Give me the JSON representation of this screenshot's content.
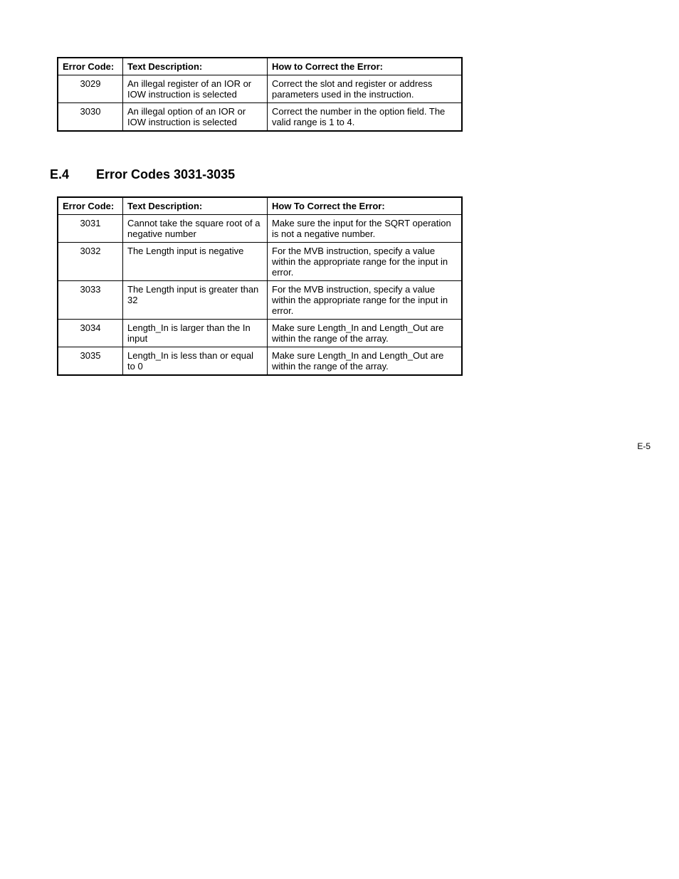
{
  "table1": {
    "headers": {
      "code": "Error Code:",
      "desc": "Text Description:",
      "fix": "How to Correct the Error:"
    },
    "rows": [
      {
        "code": "3029",
        "desc": "An illegal register of an IOR or IOW instruction is selected",
        "fix": "Correct the slot and register or address parameters used in the instruction."
      },
      {
        "code": "3030",
        "desc": "An illegal option of an IOR or IOW instruction is selected",
        "fix": "Correct the number in the option field. The valid range is 1 to 4."
      }
    ]
  },
  "section": {
    "num": "E.4",
    "title": "Error Codes 3031-3035"
  },
  "table2": {
    "headers": {
      "code": "Error Code:",
      "desc": "Text Description:",
      "fix": "How To Correct the Error:"
    },
    "rows": [
      {
        "code": "3031",
        "desc": "Cannot take the square root of a negative number",
        "fix": "Make sure the input for the SQRT operation is not a negative number."
      },
      {
        "code": "3032",
        "desc": "The Length input is negative",
        "fix": "For the MVB instruction, specify a value within the appropriate range for the input in error."
      },
      {
        "code": "3033",
        "desc": "The Length input is greater than 32",
        "fix": "For the MVB instruction, specify a value within the appropriate range for the input in error."
      },
      {
        "code": "3034",
        "desc": "Length_In is larger than the In input",
        "fix": "Make sure Length_In and Length_Out are within the range of the array."
      },
      {
        "code": "3035",
        "desc": "Length_In is less than or equal to 0",
        "fix": "Make sure Length_In and Length_Out are within the range of the array."
      }
    ]
  },
  "pageNumber": "E-5"
}
